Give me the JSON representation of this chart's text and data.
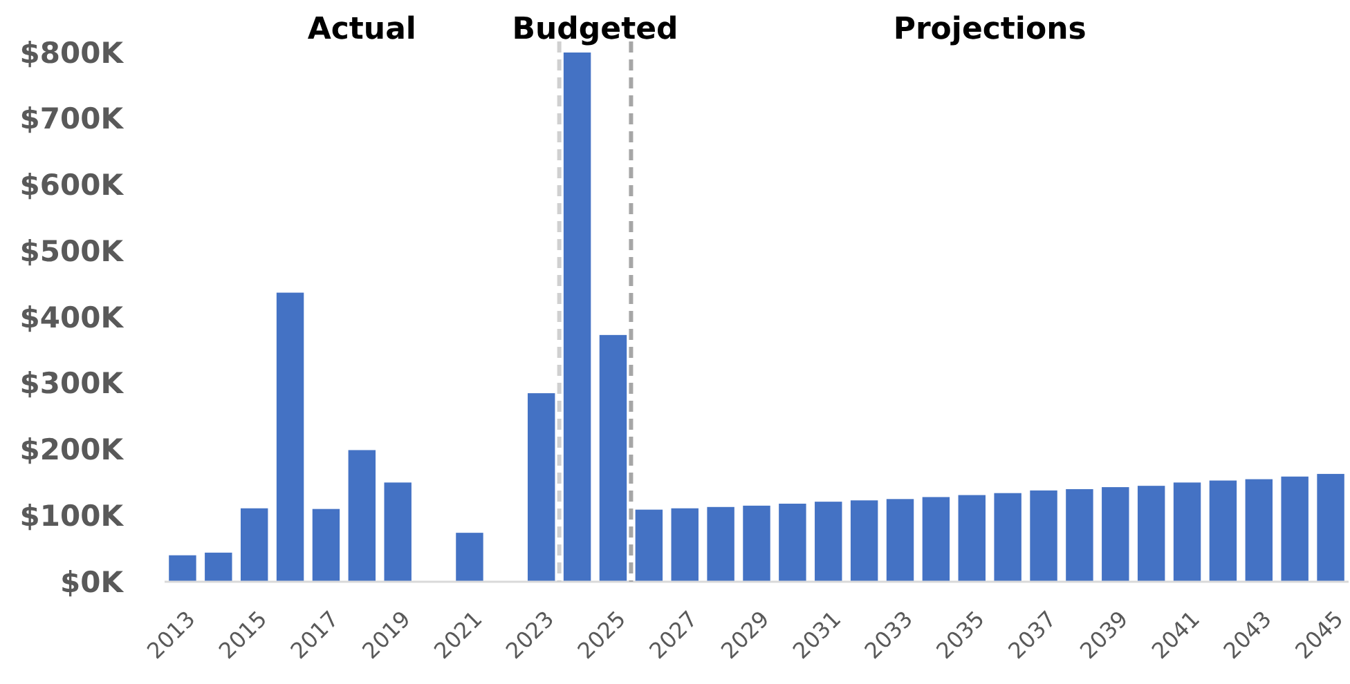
{
  "chart_data": {
    "type": "bar",
    "x": [
      2013,
      2014,
      2015,
      2016,
      2017,
      2018,
      2019,
      2020,
      2021,
      2022,
      2023,
      2024,
      2025,
      2026,
      2027,
      2028,
      2029,
      2030,
      2031,
      2032,
      2033,
      2034,
      2035,
      2036,
      2037,
      2038,
      2039,
      2040,
      2041,
      2042,
      2043,
      2044,
      2045
    ],
    "values": [
      40,
      44,
      111,
      437,
      110,
      199,
      150,
      0,
      74,
      0,
      285,
      800,
      373,
      109,
      111,
      113,
      115,
      118,
      121,
      123,
      125,
      128,
      131,
      134,
      138,
      140,
      143,
      145,
      150,
      153,
      155,
      159,
      163
    ],
    "color": "#4472c4",
    "xlim": [
      2012.5,
      2045.5
    ],
    "xticks": [
      2013,
      2015,
      2017,
      2019,
      2021,
      2023,
      2025,
      2027,
      2029,
      2031,
      2033,
      2035,
      2037,
      2039,
      2041,
      2043,
      2045
    ],
    "ylim": [
      0,
      800
    ],
    "yticks": [
      {
        "value": 0,
        "label": "$0K"
      },
      {
        "value": 100,
        "label": "$100K"
      },
      {
        "value": 200,
        "label": "$200K"
      },
      {
        "value": 300,
        "label": "$300K"
      },
      {
        "value": 400,
        "label": "$400K"
      },
      {
        "value": 500,
        "label": "$500K"
      },
      {
        "value": 600,
        "label": "$600K"
      },
      {
        "value": 700,
        "label": "$700K"
      },
      {
        "value": 800,
        "label": "$800K"
      }
    ],
    "ref_lines": [
      {
        "axis": "x",
        "value": 2023.5,
        "color": "#d0d0d0",
        "line_style": "dashed"
      },
      {
        "axis": "x",
        "value": 2025.5,
        "color": "#a6a6a6",
        "line_style": "dashed"
      }
    ],
    "annotations": [
      "Actual",
      "Budgeted",
      "Projections"
    ],
    "grid": false
  }
}
